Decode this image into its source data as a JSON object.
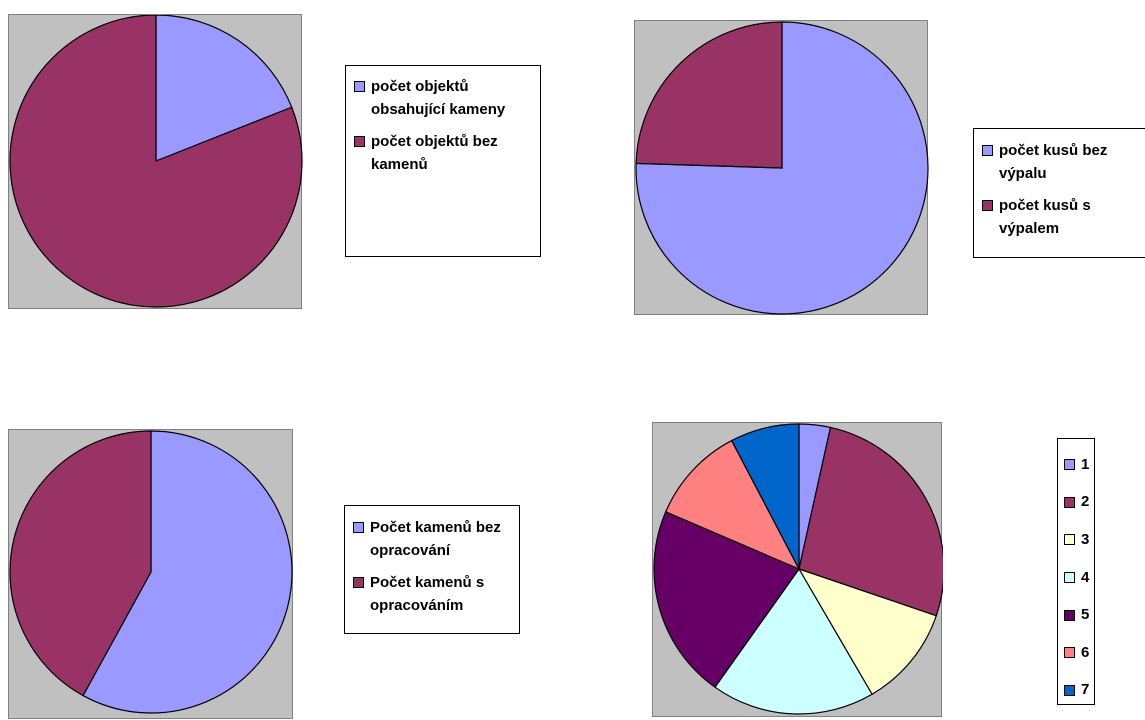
{
  "chart_data": [
    {
      "type": "pie",
      "categories": [
        "počet objektů obsahující kameny",
        "počet objektů bez kamenů"
      ],
      "values": [
        19,
        81
      ],
      "colors": [
        "#9999ff",
        "#993366"
      ],
      "start_angle_deg": 0,
      "legend_position": "right"
    },
    {
      "type": "pie",
      "categories": [
        "počet kusů bez výpalu",
        "počet kusů s výpalem"
      ],
      "values": [
        75.5,
        24.5
      ],
      "colors": [
        "#9999ff",
        "#993366"
      ],
      "start_angle_deg": 0,
      "legend_position": "right"
    },
    {
      "type": "pie",
      "categories": [
        "Počet kamenů bez opracování",
        "Počet kamenů s opracováním"
      ],
      "values": [
        58,
        42
      ],
      "colors": [
        "#9999ff",
        "#993366"
      ],
      "start_angle_deg": 0,
      "legend_position": "right"
    },
    {
      "type": "pie",
      "categories": [
        "1",
        "2",
        "3",
        "4",
        "5",
        "6",
        "7"
      ],
      "values": [
        3.4,
        26.1,
        11.1,
        17.8,
        21.1,
        10.6,
        7.5
      ],
      "colors": [
        "#9999ff",
        "#993366",
        "#ffffcc",
        "#ccffff",
        "#660066",
        "#ff8080",
        "#0066cc"
      ],
      "start_angle_deg": 0,
      "legend_position": "right"
    }
  ]
}
